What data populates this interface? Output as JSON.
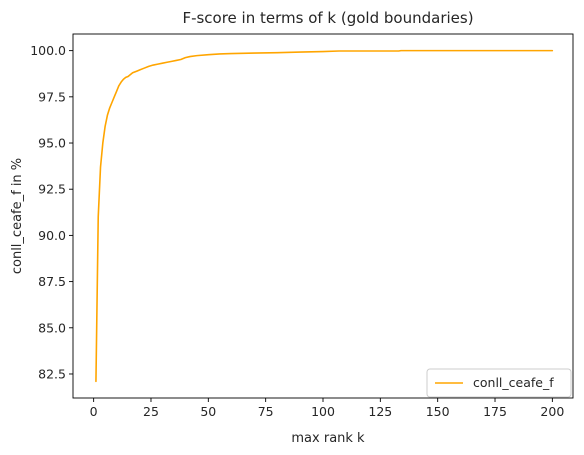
{
  "chart_data": {
    "type": "line",
    "title": "F-score in terms of k (gold boundaries)",
    "xlabel": "max rank k",
    "ylabel": "conll_ceafe_f in %",
    "xlim": [
      -9,
      209
    ],
    "ylim": [
      81.2,
      100.9
    ],
    "xticks": [
      0,
      25,
      50,
      75,
      100,
      125,
      150,
      175,
      200
    ],
    "yticks": [
      82.5,
      85.0,
      87.5,
      90.0,
      92.5,
      95.0,
      97.5,
      100.0
    ],
    "xtick_labels": [
      "0",
      "25",
      "50",
      "75",
      "100",
      "125",
      "150",
      "175",
      "200"
    ],
    "ytick_labels": [
      "82.5",
      "85.0",
      "87.5",
      "90.0",
      "92.5",
      "95.0",
      "97.5",
      "100.0"
    ],
    "legend_position": "lower-right",
    "grid": false,
    "series": [
      {
        "name": "conll_ceafe_f",
        "color": "#ffa500",
        "x": [
          1,
          2,
          3,
          4,
          5,
          6,
          7,
          8,
          9,
          10,
          11,
          12,
          13,
          14,
          15,
          16,
          17,
          18,
          19,
          20,
          22,
          24,
          26,
          28,
          30,
          32,
          34,
          36,
          38,
          40,
          42,
          45,
          50,
          55,
          60,
          70,
          80,
          90,
          100,
          107,
          110,
          120,
          133,
          134,
          150,
          175,
          200
        ],
        "y": [
          82.1,
          91.0,
          93.7,
          95.0,
          95.9,
          96.5,
          96.9,
          97.2,
          97.5,
          97.8,
          98.1,
          98.3,
          98.45,
          98.55,
          98.6,
          98.7,
          98.8,
          98.85,
          98.9,
          98.95,
          99.05,
          99.15,
          99.22,
          99.27,
          99.32,
          99.37,
          99.42,
          99.47,
          99.52,
          99.62,
          99.68,
          99.73,
          99.78,
          99.82,
          99.84,
          99.87,
          99.89,
          99.92,
          99.95,
          99.98,
          99.98,
          99.98,
          99.98,
          100.0,
          100.0,
          100.0,
          100.0
        ]
      }
    ]
  }
}
